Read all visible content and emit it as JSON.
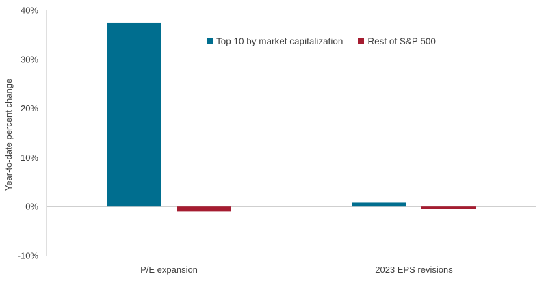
{
  "chart_data": {
    "type": "bar",
    "title": "",
    "xlabel": "",
    "ylabel": "Year-to-date percent change",
    "categories": [
      "P/E expansion",
      "2023 EPS revisions"
    ],
    "series": [
      {
        "name": "Top 10 by market capitalization",
        "color": "#006E8F",
        "values": [
          37.5,
          0.8
        ]
      },
      {
        "name": "Rest of S&P 500",
        "color": "#A51C30",
        "values": [
          -1.0,
          -0.4
        ]
      }
    ],
    "ylim": [
      -10,
      40
    ],
    "yticks": [
      -10,
      0,
      10,
      20,
      30,
      40
    ],
    "ytick_labels": [
      "-10%",
      "0%",
      "10%",
      "20%",
      "30%",
      "40%"
    ],
    "legend_position": "top-center"
  }
}
